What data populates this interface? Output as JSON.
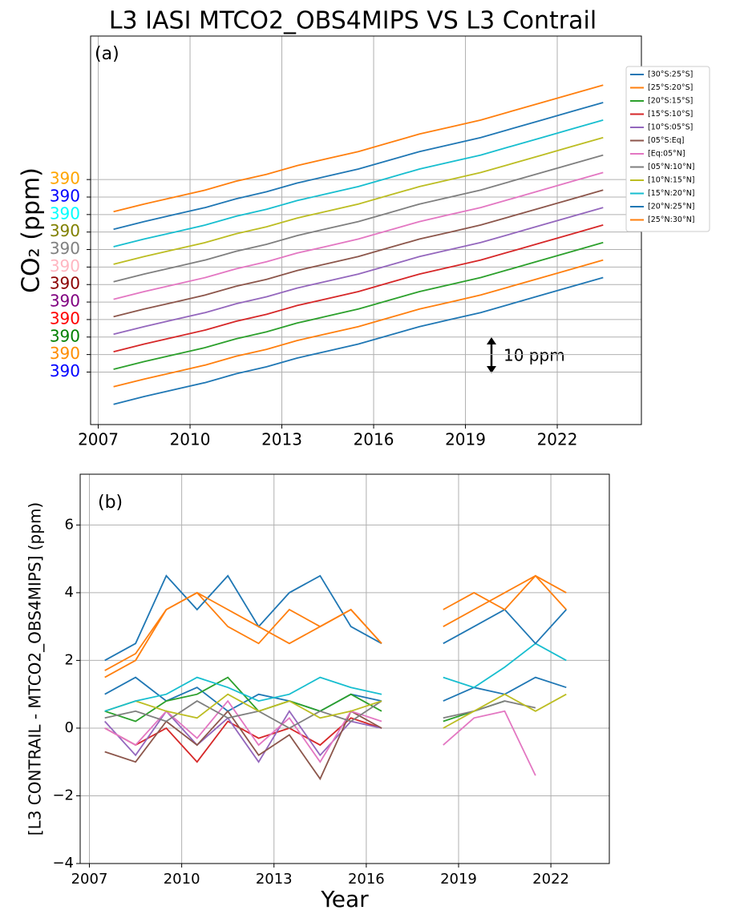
{
  "chart_data": [
    {
      "type": "line",
      "title": "L3 IASI MTCO2_OBS4MIPS VS L3 Contrail",
      "annotation": "(a)",
      "scale_note": "10 ppm",
      "ylabel": "CO₂ (ppm)",
      "x": [
        2007.5,
        2008.5,
        2009.5,
        2010.5,
        2011.5,
        2012.5,
        2013.5,
        2014.5,
        2015.5,
        2016.5,
        2017.5,
        2018.5,
        2019.5,
        2020.5,
        2021.5,
        2022.5,
        2023.5
      ],
      "xlim": [
        2006.75,
        2024.75
      ],
      "xticks": [
        2007,
        2010,
        2013,
        2016,
        2019,
        2022
      ],
      "ylim": [
        375,
        486
      ],
      "yticks": [
        {
          "value": 390,
          "label": "390"
        },
        {
          "value": 395,
          "label": "390"
        },
        {
          "value": 400,
          "label": "390"
        },
        {
          "value": 405,
          "label": "390"
        },
        {
          "value": 410,
          "label": "390"
        },
        {
          "value": 415,
          "label": "390"
        },
        {
          "value": 420,
          "label": "390"
        },
        {
          "value": 425,
          "label": "390"
        },
        {
          "value": 430,
          "label": "390"
        },
        {
          "value": 435,
          "label": "390"
        },
        {
          "value": 440,
          "label": "390"
        },
        {
          "value": 445,
          "label": "390"
        }
      ],
      "ytick_colors": [
        "#0000ff",
        "#ff8c00",
        "#008000",
        "#ff0000",
        "#800080",
        "#8b0000",
        "#ffb6c1",
        "#808080",
        "#808000",
        "#00ffff",
        "#0000ff",
        "#ffa500"
      ],
      "grid": true,
      "legend": "upper right",
      "series": [
        {
          "name": "[30°S:25°S]",
          "color": "#1f77b4",
          "values": [
            380.8,
            383,
            385,
            387,
            389.5,
            391.5,
            394,
            396,
            398,
            400.5,
            403,
            405,
            407,
            409.5,
            412,
            414.5,
            417
          ]
        },
        {
          "name": "[25°S:20°S]",
          "color": "#ff7f0e",
          "values": [
            385.8,
            388,
            390,
            392,
            394.5,
            396.5,
            399,
            401,
            403,
            405.5,
            408,
            410,
            412,
            414.5,
            417,
            419.5,
            422
          ]
        },
        {
          "name": "[20°S:15°S]",
          "color": "#2ca02c",
          "values": [
            390.8,
            393,
            395,
            397,
            399.5,
            401.5,
            404,
            406,
            408,
            410.5,
            413,
            415,
            417,
            419.5,
            422,
            424.5,
            427
          ]
        },
        {
          "name": "[15°S:10°S]",
          "color": "#d62728",
          "values": [
            395.8,
            398,
            400,
            402,
            404.5,
            406.5,
            409,
            411,
            413,
            415.5,
            418,
            420,
            422,
            424.5,
            427,
            429.5,
            432
          ]
        },
        {
          "name": "[10°S:05°S]",
          "color": "#9467bd",
          "values": [
            400.8,
            403,
            405,
            407,
            409.5,
            411.5,
            414,
            416,
            418,
            420.5,
            423,
            425,
            427,
            429.5,
            432,
            434.5,
            437
          ]
        },
        {
          "name": "[05°S:Eq]",
          "color": "#8c564b",
          "values": [
            405.8,
            408,
            410,
            412,
            414.5,
            416.5,
            419,
            421,
            423,
            425.5,
            428,
            430,
            432,
            434.5,
            437,
            439.5,
            442
          ]
        },
        {
          "name": "[Eq:05°N]",
          "color": "#e377c2",
          "values": [
            410.8,
            413,
            415,
            417,
            419.5,
            421.5,
            424,
            426,
            428,
            430.5,
            433,
            435,
            437,
            439.5,
            442,
            444.5,
            447
          ]
        },
        {
          "name": "[05°N:10°N]",
          "color": "#7f7f7f",
          "values": [
            415.8,
            418,
            420,
            422,
            424.5,
            426.5,
            429,
            431,
            433,
            435.5,
            438,
            440,
            442,
            444.5,
            447,
            449.5,
            452
          ]
        },
        {
          "name": "[10°N:15°N]",
          "color": "#bcbd22",
          "values": [
            420.8,
            423,
            425,
            427,
            429.5,
            431.5,
            434,
            436,
            438,
            440.5,
            443,
            445,
            447,
            449.5,
            452,
            454.5,
            457
          ]
        },
        {
          "name": "[15°N:20°N]",
          "color": "#17becf",
          "values": [
            425.8,
            428,
            430,
            432,
            434.5,
            436.5,
            439,
            441,
            443,
            445.5,
            448,
            450,
            452,
            454.5,
            457,
            459.5,
            462
          ]
        },
        {
          "name": "[20°N:25°N]",
          "color": "#1f77b4",
          "values": [
            430.8,
            433,
            435,
            437,
            439.5,
            441.5,
            444,
            446,
            448,
            450.5,
            453,
            455,
            457,
            459.5,
            462,
            464.5,
            467
          ]
        },
        {
          "name": "[25°N:30°N]",
          "color": "#ff7f0e",
          "values": [
            435.8,
            438,
            440,
            442,
            444.5,
            446.5,
            449,
            451,
            453,
            455.5,
            458,
            460,
            462,
            464.5,
            467,
            469.5,
            472
          ]
        }
      ]
    },
    {
      "type": "line",
      "annotation": "(b)",
      "ylabel": "[L3 CONTRAIL - MTCO2_OBS4MIPS] (ppm)",
      "xlabel": "Year",
      "x": [
        2007.5,
        2008.5,
        2009.5,
        2010.5,
        2011.5,
        2012.5,
        2013.5,
        2014.5,
        2015.5,
        2016.5,
        2017.5,
        2018.5,
        2019.5,
        2020.5,
        2021.5,
        2022.5
      ],
      "xlim": [
        2006.7,
        2023.9
      ],
      "xticks": [
        2007,
        2010,
        2013,
        2016,
        2019,
        2022
      ],
      "ylim": [
        -4,
        7.5
      ],
      "yticks": [
        {
          "value": -4,
          "label": "−4"
        },
        {
          "value": -2,
          "label": "−2"
        },
        0,
        2,
        4,
        6
      ],
      "grid": true,
      "series": [
        {
          "color": "#1f77b4",
          "values": [
            1.0,
            1.5,
            0.8,
            1.2,
            0.5,
            1.0,
            0.8,
            0.5,
            1.0,
            0.8,
            null,
            0.8,
            1.2,
            1.0,
            1.5,
            1.2
          ]
        },
        {
          "color": "#ff7f0e",
          "values": [
            1.7,
            2.2,
            3.5,
            4.0,
            3.0,
            2.5,
            3.5,
            3.0,
            3.5,
            2.5,
            null,
            3.0,
            3.5,
            4.0,
            4.5,
            3.5
          ]
        },
        {
          "color": "#2ca02c",
          "values": [
            0.5,
            0.2,
            0.8,
            1.0,
            1.5,
            0.5,
            0.8,
            0.5,
            1.0,
            0.5,
            null,
            0.2,
            0.5,
            0.8,
            null,
            null
          ]
        },
        {
          "color": "#d62728",
          "values": [
            0.0,
            -0.5,
            0.0,
            -1.0,
            0.2,
            -0.3,
            0.0,
            -0.5,
            0.3,
            0.0,
            null,
            null,
            null,
            null,
            null,
            null
          ]
        },
        {
          "color": "#9467bd",
          "values": [
            0.2,
            -0.8,
            0.5,
            -0.5,
            0.3,
            -1.0,
            0.5,
            -0.8,
            0.2,
            0.0,
            null,
            null,
            null,
            null,
            null,
            null
          ]
        },
        {
          "color": "#8c564b",
          "values": [
            -0.7,
            -1.0,
            0.2,
            -0.5,
            0.5,
            -0.8,
            -0.2,
            -1.5,
            0.5,
            0.0,
            null,
            null,
            null,
            null,
            null,
            null
          ]
        },
        {
          "color": "#e377c2",
          "values": [
            0.0,
            -0.5,
            0.5,
            -0.3,
            0.8,
            -0.5,
            0.3,
            -1.0,
            0.5,
            0.2,
            null,
            -0.5,
            0.3,
            0.5,
            -1.4,
            null
          ]
        },
        {
          "color": "#7f7f7f",
          "values": [
            0.3,
            0.5,
            0.2,
            0.8,
            0.3,
            0.5,
            0.0,
            0.5,
            0.2,
            0.8,
            null,
            0.3,
            0.5,
            0.8,
            0.6,
            null
          ]
        },
        {
          "color": "#bcbd22",
          "values": [
            0.5,
            0.8,
            0.5,
            0.3,
            1.0,
            0.5,
            0.8,
            0.3,
            0.5,
            0.8,
            null,
            0.0,
            0.5,
            1.0,
            0.5,
            1.0
          ]
        },
        {
          "color": "#17becf",
          "values": [
            0.5,
            0.8,
            1.0,
            1.5,
            1.2,
            0.8,
            1.0,
            1.5,
            1.2,
            1.0,
            null,
            1.5,
            1.2,
            1.8,
            2.5,
            2.0
          ]
        },
        {
          "color": "#1f77b4",
          "values": [
            2.0,
            2.5,
            4.5,
            3.5,
            4.5,
            3.0,
            4.0,
            4.5,
            3.0,
            2.5,
            null,
            2.5,
            3.0,
            3.5,
            2.5,
            3.5
          ]
        },
        {
          "color": "#ff7f0e",
          "values": [
            1.5,
            2.0,
            3.5,
            4.0,
            3.5,
            3.0,
            2.5,
            3.0,
            3.5,
            2.5,
            null,
            3.5,
            4.0,
            3.5,
            4.5,
            4.0
          ]
        }
      ]
    }
  ]
}
